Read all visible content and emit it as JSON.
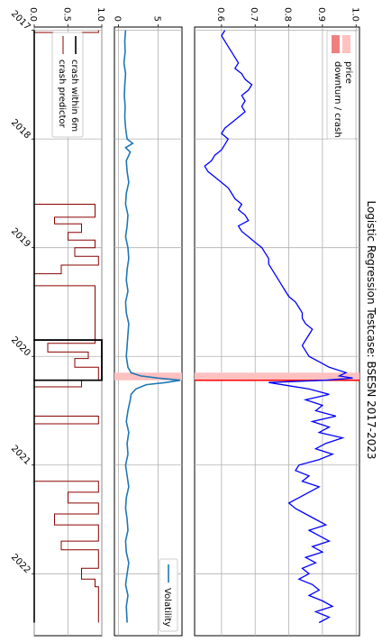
{
  "title": "Logistic Regression Testcase: BSESN 2017-2023",
  "colors": {
    "price": "#0000ff",
    "crash_span": "#ffc0c0",
    "crash_line": "#ff0000",
    "volatility": "#1f77b4",
    "predictor": "#8b0000",
    "crash_within": "#000000",
    "grid": "#b0b0b0"
  },
  "x_ticks": [
    "2017",
    "2018",
    "2019",
    "2020",
    "2021",
    "2022"
  ],
  "chart_data": [
    {
      "type": "line",
      "panel": "price",
      "title": "Logistic Regression Testcase: BSESN 2017-2023",
      "xlabel": "",
      "ylabel": "",
      "xlim": [
        2016.97,
        2022.57
      ],
      "ylim": [
        0.52,
        1.01
      ],
      "yticks": [
        "0.6",
        "0.7",
        "0.8",
        "0.9",
        "1.0"
      ],
      "grid": true,
      "legend": {
        "placement": "top-left",
        "entries": [
          "price",
          "downturn / crash"
        ]
      },
      "crash_span": [
        2020.15,
        2020.22
      ],
      "crash_line_x": 2020.22,
      "series": [
        {
          "name": "price",
          "x": [
            2017.0,
            2017.05,
            2017.1,
            2017.15,
            2017.2,
            2017.25,
            2017.3,
            2017.35,
            2017.4,
            2017.45,
            2017.5,
            2017.55,
            2017.6,
            2017.65,
            2017.7,
            2017.75,
            2017.8,
            2017.85,
            2017.9,
            2017.95,
            2018.0,
            2018.05,
            2018.1,
            2018.15,
            2018.2,
            2018.25,
            2018.3,
            2018.35,
            2018.4,
            2018.45,
            2018.5,
            2018.55,
            2018.6,
            2018.65,
            2018.7,
            2018.75,
            2018.8,
            2018.85,
            2018.9,
            2018.95,
            2019.0,
            2019.05,
            2019.1,
            2019.15,
            2019.2,
            2019.25,
            2019.3,
            2019.35,
            2019.4,
            2019.45,
            2019.5,
            2019.55,
            2019.6,
            2019.65,
            2019.7,
            2019.75,
            2019.8,
            2019.85,
            2019.9,
            2019.95,
            2020.0,
            2020.05,
            2020.1,
            2020.15,
            2020.18,
            2020.2,
            2020.22,
            2020.24,
            2020.27,
            2020.3,
            2020.35,
            2020.4,
            2020.45,
            2020.5,
            2020.55,
            2020.6,
            2020.65,
            2020.7,
            2020.75,
            2020.8,
            2020.85,
            2020.9,
            2020.95,
            2021.0,
            2021.05,
            2021.1,
            2021.15,
            2021.2,
            2021.25,
            2021.3,
            2021.35,
            2021.4,
            2021.45,
            2021.5,
            2021.55,
            2021.6,
            2021.65,
            2021.7,
            2021.75,
            2021.8,
            2021.85,
            2021.9,
            2021.95,
            2022.0,
            2022.05,
            2022.1,
            2022.15,
            2022.2,
            2022.25,
            2022.3,
            2022.35,
            2022.4,
            2022.45
          ],
          "values": [
            0.61,
            0.6,
            0.61,
            0.62,
            0.63,
            0.64,
            0.65,
            0.64,
            0.66,
            0.67,
            0.69,
            0.68,
            0.66,
            0.67,
            0.66,
            0.67,
            0.65,
            0.63,
            0.61,
            0.6,
            0.62,
            0.61,
            0.6,
            0.58,
            0.57,
            0.55,
            0.56,
            0.58,
            0.6,
            0.62,
            0.63,
            0.64,
            0.66,
            0.65,
            0.67,
            0.68,
            0.65,
            0.66,
            0.68,
            0.7,
            0.72,
            0.73,
            0.74,
            0.74,
            0.75,
            0.76,
            0.77,
            0.78,
            0.79,
            0.8,
            0.82,
            0.83,
            0.84,
            0.84,
            0.85,
            0.87,
            0.86,
            0.85,
            0.84,
            0.85,
            0.86,
            0.89,
            0.92,
            0.97,
            0.95,
            0.99,
            0.91,
            0.74,
            0.8,
            0.86,
            0.92,
            0.85,
            0.9,
            0.88,
            0.94,
            0.87,
            0.92,
            0.89,
            0.96,
            0.91,
            0.88,
            0.93,
            0.89,
            0.83,
            0.82,
            0.86,
            0.84,
            0.89,
            0.86,
            0.83,
            0.8,
            0.82,
            0.85,
            0.88,
            0.91,
            0.86,
            0.89,
            0.92,
            0.87,
            0.9,
            0.85,
            0.88,
            0.84,
            0.86,
            0.83,
            0.87,
            0.89,
            0.86,
            0.9,
            0.93,
            0.88,
            0.92,
            0.89
          ]
        }
      ]
    },
    {
      "type": "line",
      "panel": "volatility",
      "xlabel": "",
      "ylabel": "",
      "xlim": [
        2016.97,
        2022.57
      ],
      "ylim": [
        -0.5,
        8.0
      ],
      "yticks": [
        "0",
        "5"
      ],
      "grid": true,
      "legend": {
        "placement": "bottom-left",
        "entries": [
          "Volatility"
        ]
      },
      "crash_span": [
        2020.15,
        2020.22
      ],
      "series": [
        {
          "name": "Volatility",
          "x": [
            2017.0,
            2017.1,
            2017.2,
            2017.3,
            2017.4,
            2017.5,
            2017.6,
            2017.7,
            2017.8,
            2017.9,
            2018.0,
            2018.04,
            2018.08,
            2018.12,
            2018.2,
            2018.3,
            2018.4,
            2018.5,
            2018.6,
            2018.7,
            2018.8,
            2018.9,
            2019.0,
            2019.1,
            2019.2,
            2019.3,
            2019.4,
            2019.5,
            2019.6,
            2019.7,
            2019.8,
            2019.9,
            2020.0,
            2020.1,
            2020.15,
            2020.18,
            2020.2,
            2020.22,
            2020.24,
            2020.26,
            2020.3,
            2020.35,
            2020.4,
            2020.5,
            2020.6,
            2020.7,
            2020.8,
            2020.9,
            2021.0,
            2021.1,
            2021.2,
            2021.3,
            2021.4,
            2021.5,
            2021.6,
            2021.7,
            2021.8,
            2021.9,
            2022.0,
            2022.1,
            2022.2,
            2022.3,
            2022.45
          ],
          "values": [
            0.9,
            0.8,
            0.85,
            0.7,
            0.9,
            0.8,
            0.75,
            0.85,
            0.8,
            0.9,
            1.1,
            1.8,
            0.9,
            1.5,
            1.0,
            1.1,
            1.3,
            1.0,
            0.9,
            1.2,
            1.1,
            0.9,
            1.2,
            1.3,
            1.1,
            1.0,
            1.2,
            0.9,
            1.0,
            1.3,
            1.2,
            1.1,
            1.0,
            1.2,
            1.6,
            2.8,
            5.0,
            7.8,
            6.0,
            3.5,
            2.2,
            1.6,
            1.5,
            1.2,
            1.0,
            1.3,
            1.1,
            1.2,
            0.9,
            1.1,
            1.3,
            1.0,
            0.9,
            1.1,
            1.2,
            0.9,
            1.0,
            1.3,
            1.1,
            0.9,
            1.2,
            1.0,
            1.1
          ]
        }
      ]
    },
    {
      "type": "line",
      "panel": "prediction",
      "xlabel": "",
      "ylabel": "",
      "xlim": [
        2016.97,
        2022.57
      ],
      "ylim": [
        0.0,
        1.0
      ],
      "yticks": [
        "0.0",
        "0.5",
        "1.0"
      ],
      "grid": true,
      "legend": {
        "placement": "top-right",
        "entries": [
          "crash within 6m",
          "crash predictor"
        ]
      },
      "crash_box": [
        2019.85,
        2020.22
      ],
      "series": [
        {
          "name": "crash within 6m",
          "x": [
            2017.0,
            2019.85,
            2019.85,
            2020.22,
            2020.22,
            2022.45
          ],
          "values": [
            0,
            0,
            1,
            1,
            0,
            0
          ]
        },
        {
          "name": "crash predictor",
          "x": [
            2017.0,
            2017.02,
            2017.02,
            2017.15,
            2017.15,
            2017.88,
            2017.88,
            2018.6,
            2018.6,
            2018.72,
            2018.72,
            2018.78,
            2018.78,
            2018.86,
            2018.86,
            2018.93,
            2018.93,
            2019.0,
            2019.0,
            2019.08,
            2019.08,
            2019.16,
            2019.16,
            2019.24,
            2019.24,
            2019.35,
            2019.35,
            2019.88,
            2019.88,
            2019.96,
            2019.96,
            2020.02,
            2020.02,
            2020.1,
            2020.1,
            2020.22,
            2020.22,
            2020.28,
            2020.28,
            2020.35,
            2020.35,
            2020.55,
            2020.55,
            2020.62,
            2020.62,
            2021.15,
            2021.15,
            2021.25,
            2021.25,
            2021.35,
            2021.35,
            2021.45,
            2021.45,
            2021.55,
            2021.55,
            2021.7,
            2021.7,
            2021.78,
            2021.78,
            2021.95,
            2021.95,
            2022.05,
            2022.05,
            2022.12,
            2022.12,
            2022.25,
            2022.25,
            2022.45
          ],
          "values": [
            0.95,
            0.95,
            0.0,
            0.0,
            0.0,
            0.0,
            0.0,
            0.0,
            0.9,
            0.9,
            0.3,
            0.3,
            0.7,
            0.7,
            0.5,
            0.5,
            0.9,
            0.9,
            0.6,
            0.6,
            0.95,
            0.95,
            0.4,
            0.4,
            0.0,
            0.0,
            0.9,
            0.9,
            0.2,
            0.2,
            0.8,
            0.8,
            0.6,
            0.6,
            0.95,
            0.95,
            0.7,
            0.7,
            0.0,
            0.0,
            0.0,
            0.0,
            0.95,
            0.95,
            0.0,
            0.0,
            0.95,
            0.95,
            0.5,
            0.5,
            0.95,
            0.95,
            0.3,
            0.3,
            0.95,
            0.95,
            0.4,
            0.4,
            0.95,
            0.95,
            0.7,
            0.7,
            0.9,
            0.9,
            0.95,
            0.95,
            0.95,
            0.95
          ]
        }
      ]
    }
  ]
}
